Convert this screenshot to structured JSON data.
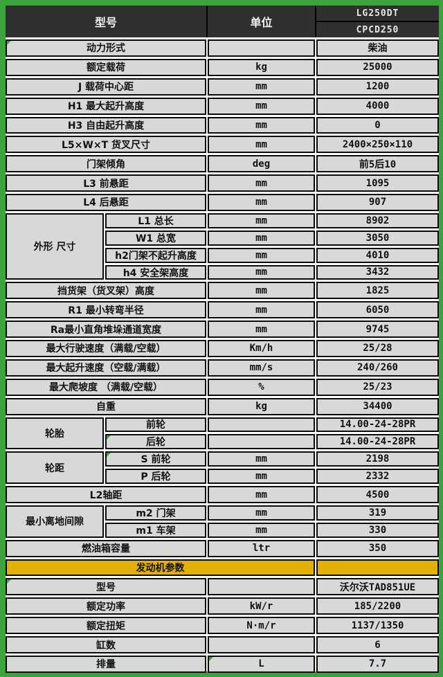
{
  "title": "LG250DT forklift specification table",
  "colors": {
    "frame_green": "#3BA33C",
    "header_bg": "#2F2F2F",
    "cell_bg": "#D8D8D8",
    "banner_yellow": "#E2B104",
    "border_black": "#0A0A0A"
  },
  "header": {
    "col_model": "型号",
    "col_unit": "单位",
    "model_top": "LG250DT",
    "model_bottom": "CPCD250"
  },
  "chart_data": {
    "type": "table",
    "columns": [
      "型号",
      "单位",
      "LG250DT / CPCD250"
    ],
    "rows": [
      {
        "type": "simple",
        "label": "动力形式",
        "unit": "",
        "value": "柴油",
        "tri": [
          "label"
        ]
      },
      {
        "type": "simple",
        "label": "额定载荷",
        "unit": "kg",
        "value": "25000"
      },
      {
        "type": "simple",
        "label": "J 载荷中心距",
        "unit": "mm",
        "value": "1200"
      },
      {
        "type": "simple",
        "label": "H1 最大起升高度",
        "unit": "mm",
        "value": "4000"
      },
      {
        "type": "simple",
        "label": "H3 自由起升高度",
        "unit": "mm",
        "value": "0"
      },
      {
        "type": "simple",
        "label": "L5×W×T 货叉尺寸",
        "unit": "mm",
        "value": "2400×250×110"
      },
      {
        "type": "simple",
        "label": "门架倾角",
        "unit": "deg",
        "value": "前5后10"
      },
      {
        "type": "simple",
        "label": "L3 前悬距",
        "unit": "mm",
        "value": "1095"
      },
      {
        "type": "simple",
        "label": "L4 后悬距",
        "unit": "mm",
        "value": "907"
      },
      {
        "type": "group",
        "group": "外形 尺寸",
        "items": [
          {
            "label": "L1 总长",
            "unit": "mm",
            "value": "8902"
          },
          {
            "label": "W1 总宽",
            "unit": "mm",
            "value": "3050"
          },
          {
            "label": "h2门架不起升高度",
            "unit": "mm",
            "value": "4010"
          },
          {
            "label": "h4 安全架高度",
            "unit": "mm",
            "value": "3432"
          }
        ]
      },
      {
        "type": "simple",
        "label": "挡货架（货叉架）高度",
        "unit": "mm",
        "value": "1825"
      },
      {
        "type": "simple",
        "label": "R1 最小转弯半径",
        "unit": "mm",
        "value": "6050"
      },
      {
        "type": "simple",
        "label": "Ra最小直角堆垛通道宽度",
        "unit": "mm",
        "value": "9745"
      },
      {
        "type": "simple",
        "label": "最大行驶速度（满载/空载）",
        "unit": "Km/h",
        "value": "25/28"
      },
      {
        "type": "simple",
        "label": "最大起升速度（空载/满载）",
        "unit": "mm/s",
        "value": "240/260"
      },
      {
        "type": "simple",
        "label": "最大爬坡度 （满载/空载）",
        "unit": "%",
        "value": "25/23"
      },
      {
        "type": "simple",
        "label": "自重",
        "unit": "kg",
        "value": "34400"
      },
      {
        "type": "group",
        "group": "轮胎",
        "items": [
          {
            "label": "前轮",
            "unit": "",
            "value": "14.00-24-28PR"
          },
          {
            "label": "后轮",
            "unit": "",
            "value": "14.00-24-28PR",
            "tri": [
              "label"
            ]
          }
        ]
      },
      {
        "type": "group",
        "group": "轮距",
        "items": [
          {
            "label": "S 前轮",
            "unit": "mm",
            "value": "2198",
            "tri": [
              "label"
            ]
          },
          {
            "label": "P 后轮",
            "unit": "mm",
            "value": "2332"
          }
        ]
      },
      {
        "type": "simple",
        "label": "L2轴距",
        "unit": "mm",
        "value": "4500"
      },
      {
        "type": "group",
        "group": "最小离地间隙",
        "items": [
          {
            "label": "m2 门架",
            "unit": "mm",
            "value": "319"
          },
          {
            "label": "m1 车架",
            "unit": "mm",
            "value": "330"
          }
        ]
      },
      {
        "type": "simple",
        "label": "燃油箱容量",
        "unit": "ltr",
        "value": "350"
      },
      {
        "type": "banner",
        "label": "发动机参数"
      },
      {
        "type": "simple",
        "label": "型号",
        "unit": "",
        "value": "沃尔沃TAD851UE",
        "tri": [
          "label"
        ]
      },
      {
        "type": "simple",
        "label": "额定功率",
        "unit": "kW/r",
        "value": "185/2200"
      },
      {
        "type": "simple",
        "label": "额定扭矩",
        "unit": "N·m/r",
        "value": "1137/1350"
      },
      {
        "type": "simple",
        "label": "缸数",
        "unit": "",
        "value": "6"
      },
      {
        "type": "simple",
        "label": "排量",
        "unit": "L",
        "value": "7.7",
        "tri": [
          "unit"
        ]
      }
    ]
  }
}
